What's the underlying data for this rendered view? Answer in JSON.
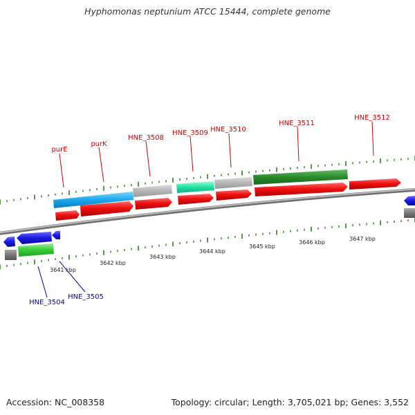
{
  "title": "Hyphomonas neptunium ATCC 15444, complete genome",
  "accession_text": "Accession: NC_008358",
  "topology_text": "Topology: circular; Length: 3,705,021 bp; Genes: 3,552",
  "colors": {
    "backbone": "#8a8a8a",
    "tick": "#2e7d16",
    "forward_label": "#cc0000",
    "reverse_label": "#0000aa",
    "cds": "#ee1111",
    "blue_gene": "#1a9fe0",
    "grey_gene": "#b5b5b5",
    "teal_gene": "#20e0a0",
    "dark_green_gene": "#2a8a2a",
    "green_gene": "#33cc33",
    "reverse_blue": "#1a1ae0",
    "reverse_grey": "#777777"
  },
  "forward_labels": [
    "purE",
    "purK",
    "HNE_3508",
    "HNE_3509",
    "HNE_3510",
    "HNE_3511",
    "HNE_3512"
  ],
  "reverse_labels": [
    "HNE_3504",
    "HNE_3505"
  ],
  "kbp_labels": [
    "3641 kbp",
    "3642 kbp",
    "3643 kbp",
    "3644 kbp",
    "3645 kbp",
    "3646 kbp",
    "3647 kbp"
  ]
}
